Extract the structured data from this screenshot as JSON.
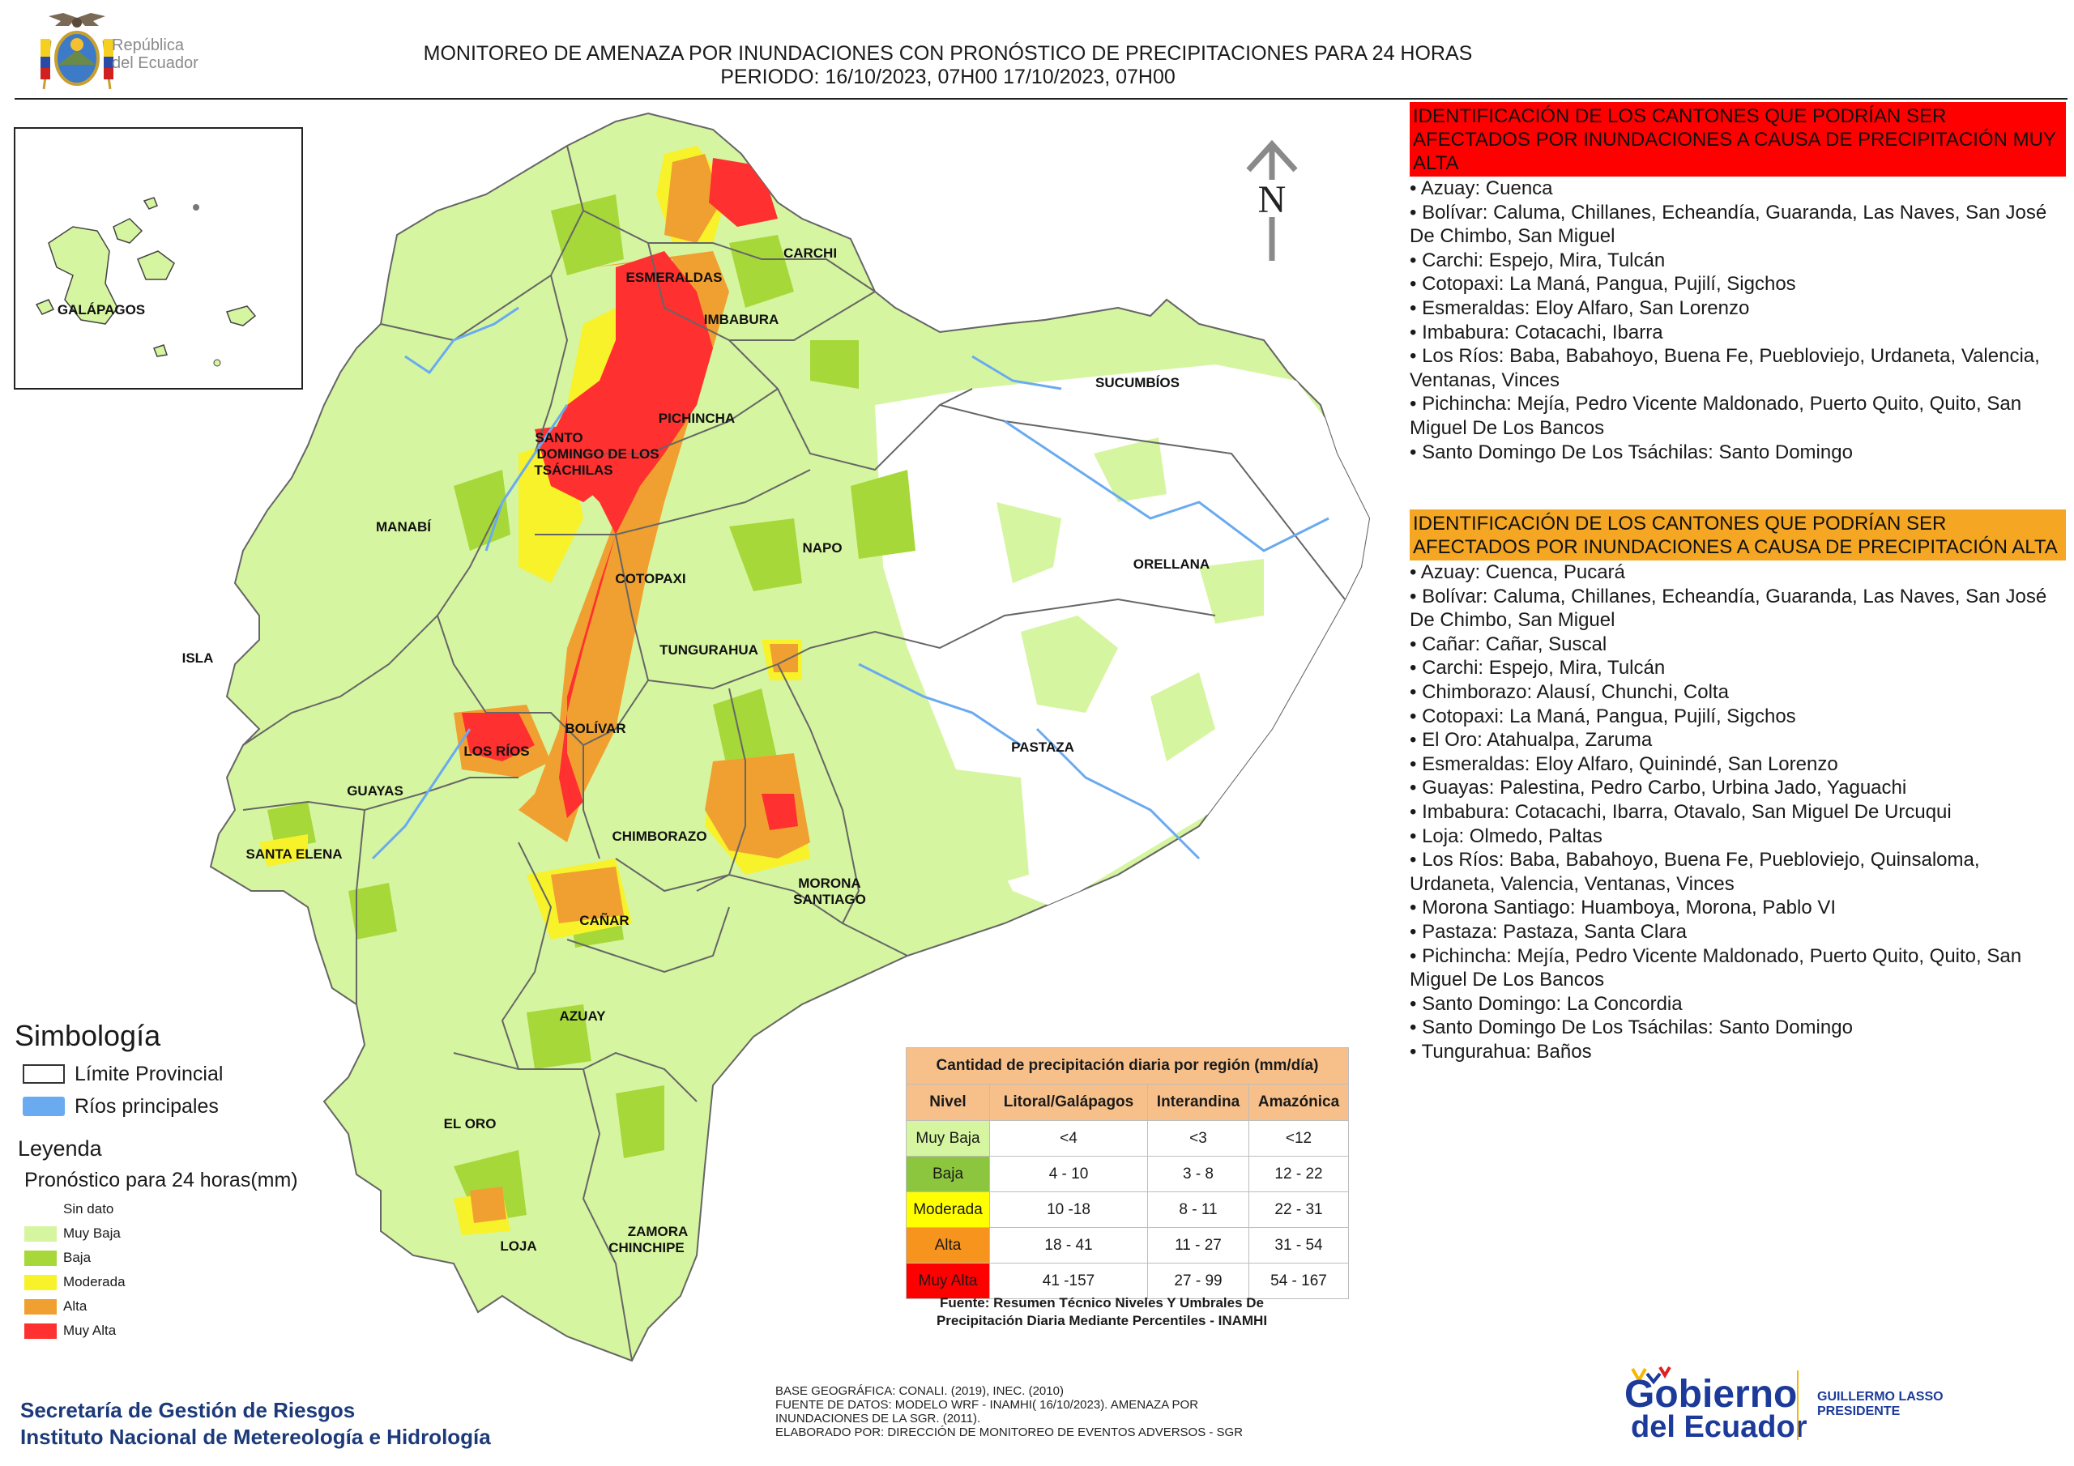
{
  "header": {
    "crest_label": "República del Ecuador",
    "crest_line1": "República",
    "crest_line2": "del Ecuador",
    "title_line1": "MONITOREO DE AMENAZA POR INUNDACIONES  CON PRONÓSTICO DE  PRECIPITACIONES PARA 24 HORAS",
    "title_line2": "PERIODO: 16/10/2023, 07H00 17/10/2023, 07H00"
  },
  "map": {
    "inset_label": "GALÁPAGOS",
    "north_label": "N",
    "provinces": [
      "ESMERALDAS",
      "CARCHI",
      "IMBABURA",
      "SUCUMBÍOS",
      "PICHINCHA",
      "SANTO",
      "DOMINGO DE LOS",
      "TSÁCHILAS",
      "MANABÍ",
      "NAPO",
      "ORELLANA",
      "COTOPAXI",
      "TUNGURAHUA",
      "ISLA",
      "BOLÍVAR",
      "LOS RÍOS",
      "PASTAZA",
      "GUAYAS",
      "SANTA ELENA",
      "CHIMBORAZO",
      "MORONA",
      "SANTIAGO",
      "CAÑAR",
      "AZUAY",
      "EL ORO",
      "LOJA",
      "ZAMORA",
      "CHINCHIPE"
    ],
    "colors": {
      "muy_baja": "#d6f5a0",
      "baja": "#a6d83a",
      "moderada": "#f7f22a",
      "alta": "#f0a030",
      "muy_alta": "#ff3030",
      "rios": "#6aaaf0"
    }
  },
  "lists": {
    "muy_alta": {
      "heading": "IDENTIFICACIÓN DE LOS CANTONES QUE PODRÍAN SER AFECTADOS POR INUNDACIONES  A CAUSA DE PRECIPITACIÓN MUY ALTA",
      "items": [
        "• Azuay: Cuenca",
        "• Bolívar: Caluma, Chillanes, Echeandía, Guaranda, Las Naves, San José De Chimbo, San Miguel",
        "• Carchi: Espejo, Mira, Tulcán",
        "• Cotopaxi: La Maná, Pangua, Pujilí, Sigchos",
        "• Esmeraldas: Eloy Alfaro, San Lorenzo",
        "• Imbabura: Cotacachi, Ibarra",
        "• Los Ríos: Baba, Babahoyo, Buena Fe, Puebloviejo, Urdaneta, Valencia, Ventanas, Vinces",
        "• Pichincha: Mejía, Pedro Vicente Maldonado, Puerto Quito, Quito, San Miguel De Los Bancos",
        "• Santo Domingo De Los Tsáchilas: Santo Domingo"
      ]
    },
    "alta": {
      "heading": "IDENTIFICACIÓN DE LOS CANTONES QUE  PODRÍAN SER AFECTADOS POR INUNDACIONES  A CAUSA DE PRECIPITACIÓN ALTA",
      "items": [
        "• Azuay: Cuenca, Pucará",
        "• Bolívar: Caluma, Chillanes, Echeandía, Guaranda, Las Naves, San José De Chimbo, San Miguel",
        "• Cañar: Cañar, Suscal",
        "• Carchi: Espejo, Mira, Tulcán",
        "• Chimborazo: Alausí, Chunchi, Colta",
        "• Cotopaxi: La Maná, Pangua, Pujilí, Sigchos",
        "• El Oro: Atahualpa, Zaruma",
        "• Esmeraldas: Eloy Alfaro, Quinindé, San Lorenzo",
        "• Guayas: Palestina, Pedro Carbo, Urbina Jado, Yaguachi",
        "• Imbabura: Cotacachi, Ibarra, Otavalo, San Miguel De Urcuqui",
        "• Loja: Olmedo, Paltas",
        "• Los Ríos: Baba, Babahoyo, Buena Fe, Puebloviejo, Quinsaloma, Urdaneta, Valencia, Ventanas, Vinces",
        "• Morona Santiago: Huamboya, Morona, Pablo VI",
        "• Pastaza: Pastaza, Santa Clara",
        "• Pichincha: Mejía, Pedro Vicente Maldonado, Puerto Quito, Quito, San Miguel De Los Bancos",
        "• Santo Domingo: La Concordia",
        "• Santo Domingo De Los Tsáchilas: Santo Domingo",
        "• Tungurahua: Baños"
      ]
    }
  },
  "simbologia": {
    "title": "Simbología",
    "limite": "Límite Provincial",
    "rios": "Ríos principales"
  },
  "leyenda": {
    "title": "Leyenda",
    "subtitle": "Pronóstico para 24 horas(mm)",
    "items": [
      {
        "label": "Sin dato",
        "color": "#ffffff"
      },
      {
        "label": "Muy Baja",
        "color": "#d6f5a0"
      },
      {
        "label": "Baja",
        "color": "#a6d83a"
      },
      {
        "label": "Moderada",
        "color": "#f7f22a"
      },
      {
        "label": "Alta",
        "color": "#f0a030"
      },
      {
        "label": "Muy Alta",
        "color": "#ff3030"
      }
    ]
  },
  "table": {
    "title": "Cantidad de precipitación diaria por región (mm/día)",
    "headers": [
      "Nivel",
      "Litoral/Galápagos",
      "Interandina",
      "Amazónica"
    ],
    "rows": [
      {
        "nivel": "Muy Baja",
        "color": "#d6f5a0",
        "litoral": "<4",
        "interandina": "<3",
        "amazonica": "<12"
      },
      {
        "nivel": "Baja",
        "color": "#8cc63f",
        "litoral": "4 - 10",
        "interandina": "3 - 8",
        "amazonica": "12 - 22"
      },
      {
        "nivel": "Moderada",
        "color": "#ffff00",
        "litoral": "10 -18",
        "interandina": "8 - 11",
        "amazonica": "22 - 31"
      },
      {
        "nivel": "Alta",
        "color": "#f7941d",
        "litoral": "18 - 41",
        "interandina": "11 - 27",
        "amazonica": "31 - 54"
      },
      {
        "nivel": "Muy Alta",
        "color": "#ff0000",
        "litoral": "41 -157",
        "interandina": "27 - 99",
        "amazonica": "54 - 167"
      }
    ],
    "source_line1": "Fuente: Resumen Técnico Niveles Y Umbrales De",
    "source_line2": "Precipitación Diaria Mediante Percentiles - INAMHI"
  },
  "footer": {
    "sgr_line1": "Secretaría de Gestión de Riesgos",
    "sgr_line2": "Instituto Nacional de Metereología e Hidrología",
    "base_line1": "BASE GEOGRÁFICA: CONALI. (2019), INEC. (2010)",
    "base_line2": "FUENTE DE DATOS: MODELO WRF - INAMHI( 16/10/2023).  AMENAZA POR",
    "base_line3": "INUNDACIONES DE LA SGR. (2011).",
    "base_line4": "ELABORADO POR: DIRECCIÓN DE MONITOREO DE EVENTOS ADVERSOS - SGR",
    "gobierno_line1": "Gobierno",
    "gobierno_line2": "del Ecuador",
    "president_line1": "GUILLERMO LASSO",
    "president_line2": "PRESIDENTE"
  }
}
